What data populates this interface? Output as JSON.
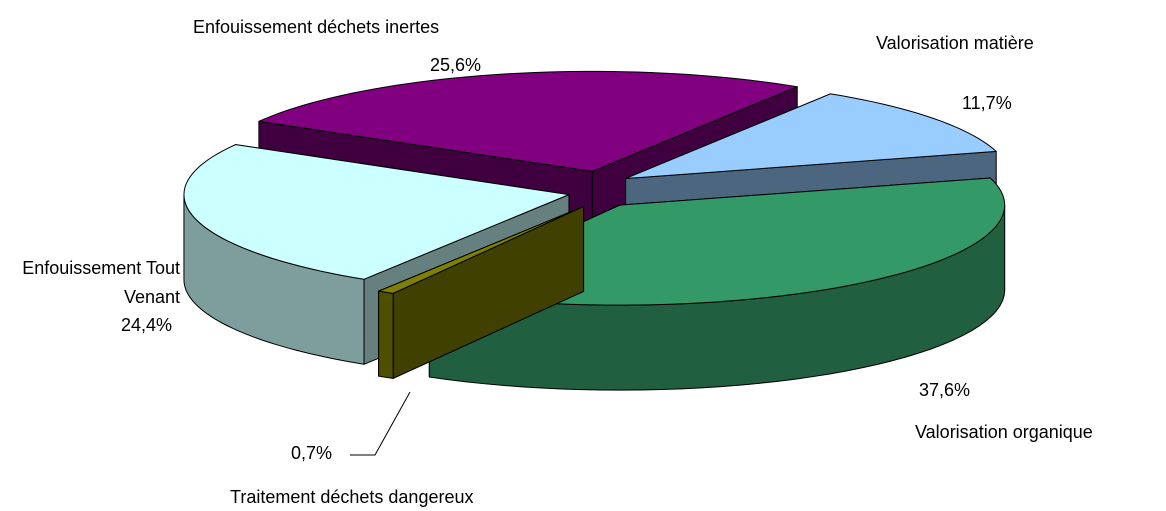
{
  "chart_data": {
    "type": "pie3d",
    "categories": [
      "Enfouissement déchets inertes",
      "Valorisation matière",
      "Valorisation organique",
      "Traitement déchets dangereux",
      "Enfouissement Tout Venant"
    ],
    "values": [
      25.6,
      11.7,
      37.6,
      0.7,
      24.4
    ],
    "value_labels": [
      "25,6%",
      "11,7%",
      "37,6%",
      "0,7%",
      "24,4%"
    ],
    "colors": [
      "#800080",
      "#99ccff",
      "#339966",
      "#808000",
      "#ccffff"
    ]
  }
}
